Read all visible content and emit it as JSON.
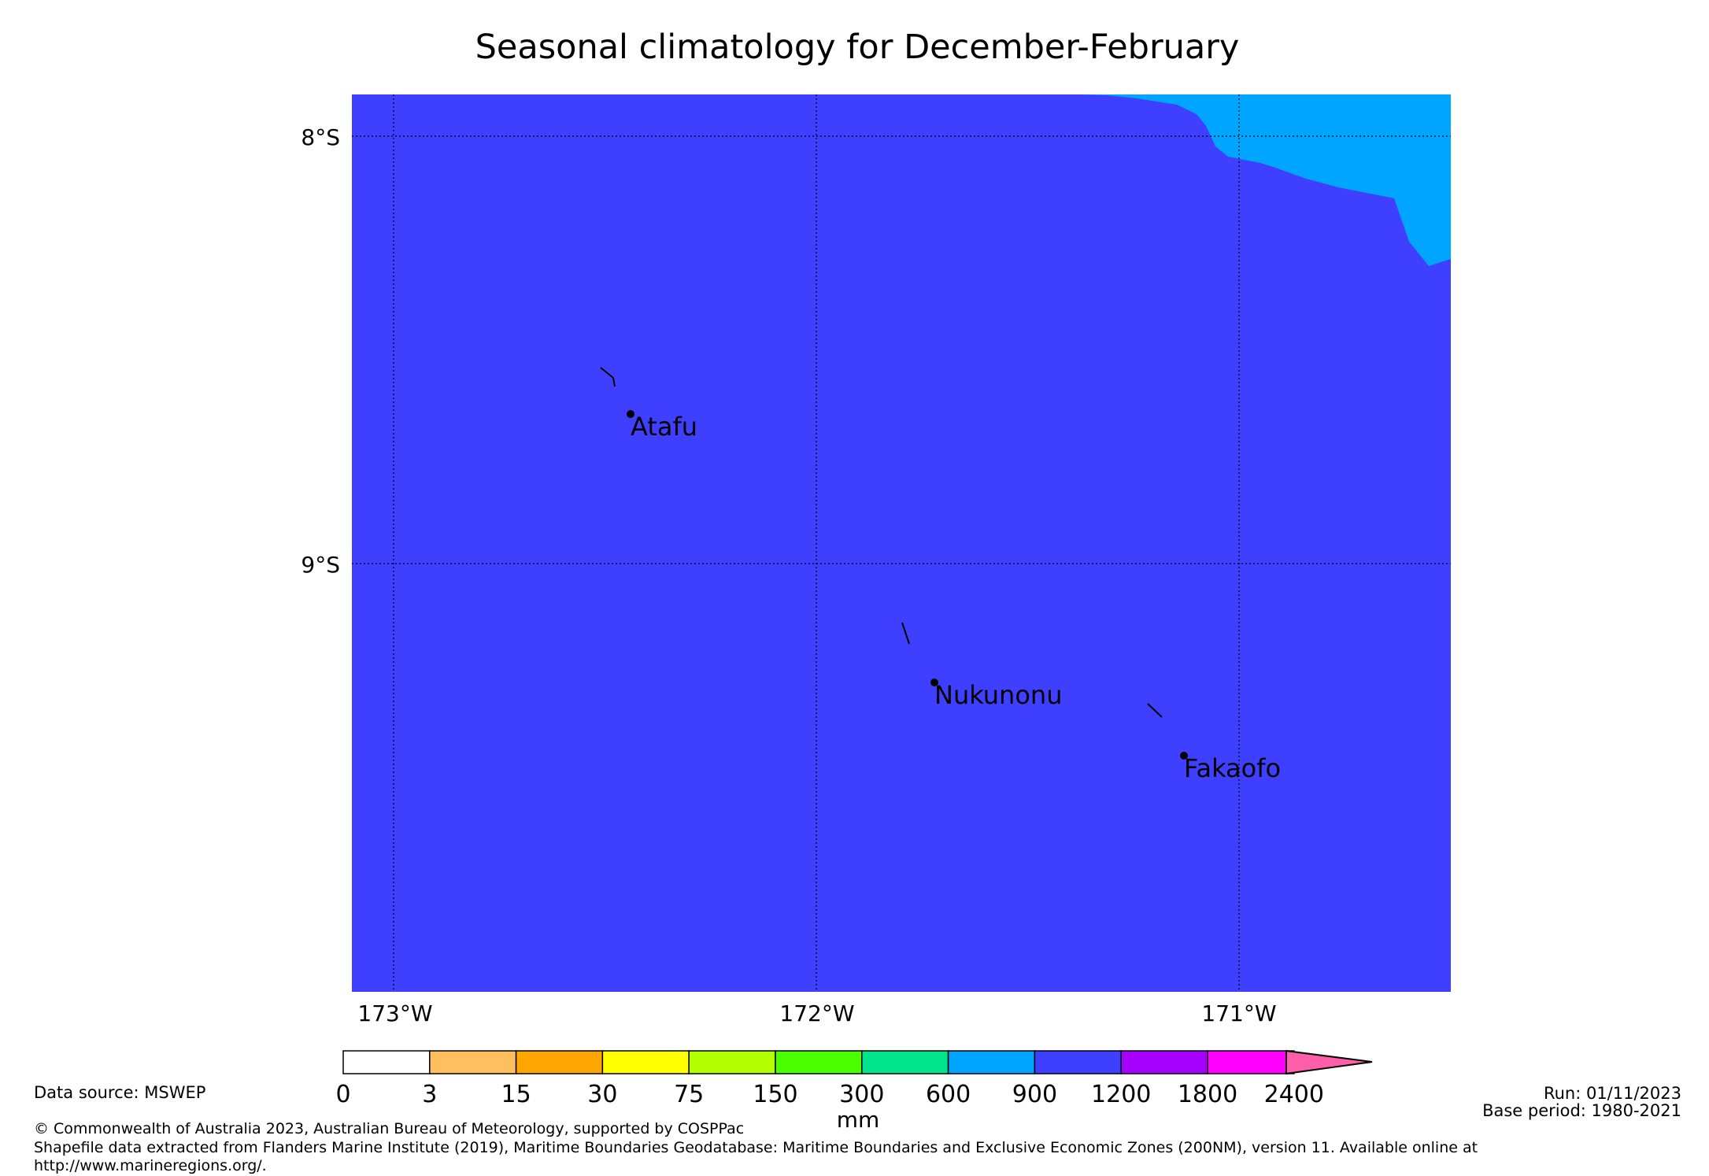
{
  "title": "Seasonal climatology for December-February",
  "map": {
    "lat_labels": [
      "8°S",
      "9°S"
    ],
    "lon_labels": [
      "173°W",
      "172°W",
      "171°W"
    ],
    "colors": {
      "ocean_main": "#3f3fff",
      "ocean_ne": "#00a5ff"
    },
    "places": [
      {
        "name": "Atafu"
      },
      {
        "name": "Nukunonu"
      },
      {
        "name": "Fakaofo"
      }
    ]
  },
  "colorbar": {
    "unit": "mm",
    "ticks": [
      "0",
      "3",
      "15",
      "30",
      "75",
      "150",
      "300",
      "600",
      "900",
      "1200",
      "1800",
      "2400"
    ],
    "colors": [
      "#ffffff",
      "#ffbf5f",
      "#ffa500",
      "#ffff00",
      "#b3ff00",
      "#4cff00",
      "#00e58c",
      "#00a5ff",
      "#3f3fff",
      "#a600ff",
      "#ff00ff",
      "#ff5faa"
    ]
  },
  "footer": {
    "data_source": "Data source: MSWEP",
    "run": "Run: 01/11/2023",
    "base_period": "Base period: 1980-2021",
    "copyright": "© Commonwealth of Australia 2023, Australian Bureau of Meteorology, supported by COSPPac",
    "shapefile_line1": "Shapefile data extracted from Flanders Marine Institute (2019), Maritime Boundaries Geodatabase: Maritime Boundaries and Exclusive Economic Zones (200NM), version 11. Available online at",
    "shapefile_line2": "http://www.marineregions.org/."
  }
}
